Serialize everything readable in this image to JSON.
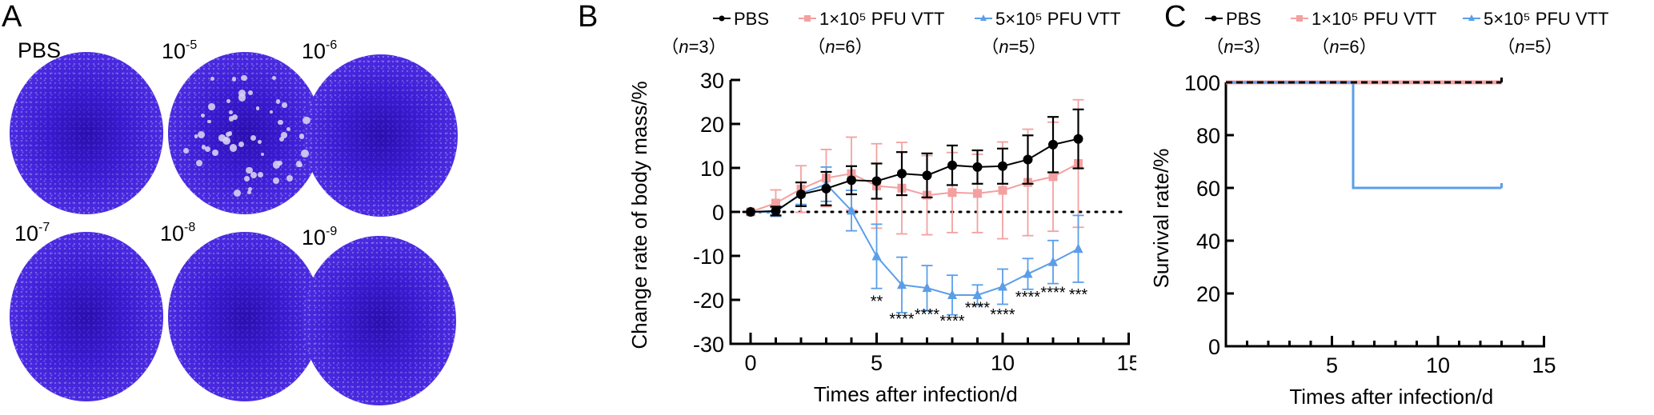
{
  "panel_a": {
    "letter": "A",
    "plates": [
      {
        "label": "PBS",
        "base": "",
        "exp": ""
      },
      {
        "label": "",
        "base": "10",
        "exp": "-5"
      },
      {
        "label": "",
        "base": "10",
        "exp": "-6"
      },
      {
        "label": "",
        "base": "10",
        "exp": "-7"
      },
      {
        "label": "",
        "base": "10",
        "exp": "-8"
      },
      {
        "label": "",
        "base": "10",
        "exp": "-9"
      }
    ]
  },
  "legend": [
    {
      "name": "PBS",
      "n": "n=3",
      "color": "#000000",
      "marker": "circle"
    },
    {
      "name": "1×10⁵ PFU VTT",
      "n": "n=6",
      "color": "#f4a0a0",
      "marker": "square"
    },
    {
      "name": "5×10⁵ PFU VTT",
      "n": "n=5",
      "color": "#5b9ee8",
      "marker": "triangle"
    }
  ],
  "chart_data": [
    {
      "panel": "B",
      "type": "line",
      "title": "",
      "xlabel": "Times after infection/d",
      "ylabel": "Change rate of body mass/%",
      "xlim": [
        -1,
        15
      ],
      "ylim": [
        -30,
        30
      ],
      "xticks": [
        0,
        5,
        10,
        15
      ],
      "yticks": [
        30,
        20,
        10,
        0,
        -10,
        -20,
        -30
      ],
      "reference_line": {
        "y": 0,
        "style": "dotted"
      },
      "x": [
        0,
        1,
        2,
        3,
        4,
        5,
        6,
        7,
        8,
        9,
        10,
        11,
        12,
        13
      ],
      "series": [
        {
          "name": "PBS (n=3)",
          "color": "#000000",
          "marker": "circle",
          "values": [
            0,
            0.2,
            4,
            5.3,
            7.2,
            7,
            8.7,
            8.3,
            10.6,
            10.2,
            10.4,
            11.9,
            15.3,
            16.6
          ],
          "errors": [
            0,
            1.0,
            2.7,
            3.8,
            3.2,
            4.0,
            4.9,
            5.0,
            4.5,
            3.8,
            4.0,
            5.5,
            6.3,
            6.7
          ]
        },
        {
          "name": "1×10⁵ PFU VTT (n=6)",
          "color": "#f4a0a0",
          "marker": "square",
          "values": [
            0,
            2,
            5.2,
            7.7,
            8.7,
            5.9,
            5.4,
            3.8,
            4.4,
            4.2,
            4.9,
            6.7,
            8,
            11
          ],
          "errors": [
            0,
            3.0,
            5.3,
            6.5,
            8.3,
            9.6,
            10.4,
            9.0,
            9.1,
            8.9,
            11.0,
            12.1,
            12.4,
            14.5
          ]
        },
        {
          "name": "5×10⁵ PFU VTT (n=5)",
          "color": "#5b9ee8",
          "marker": "triangle",
          "values": [
            0,
            0,
            4.2,
            6.3,
            0.3,
            -10.1,
            -16.6,
            -17.3,
            -18.9,
            -18.9,
            -17,
            -14.1,
            -11.4,
            -8.4
          ],
          "errors": [
            0,
            1.0,
            2.5,
            3.9,
            4.6,
            7.3,
            6.3,
            5.1,
            4.5,
            2.3,
            4.0,
            3.5,
            4.9,
            7.6
          ]
        }
      ],
      "annotations": [
        {
          "x": 5,
          "text": "**"
        },
        {
          "x": 6,
          "text": "****"
        },
        {
          "x": 7,
          "text": "****"
        },
        {
          "x": 8,
          "text": "****"
        },
        {
          "x": 9,
          "text": "****"
        },
        {
          "x": 10,
          "text": "****"
        },
        {
          "x": 11,
          "text": "****"
        },
        {
          "x": 12,
          "text": "****"
        },
        {
          "x": 13,
          "text": "***"
        }
      ]
    },
    {
      "panel": "C",
      "type": "line",
      "subtype": "survival-step",
      "title": "",
      "xlabel": "Times after infection/d",
      "ylabel": "Survival rate/%",
      "xlim": [
        0,
        15
      ],
      "ylim": [
        0,
        100
      ],
      "xticks": [
        5,
        10,
        15
      ],
      "yticks": [
        100,
        80,
        60,
        40,
        20,
        0
      ],
      "series": [
        {
          "name": "PBS (n=3)",
          "color": "#000000",
          "style": "dashed",
          "steps": [
            [
              0,
              100
            ],
            [
              13,
              100
            ]
          ]
        },
        {
          "name": "1×10⁵ PFU VTT (n=6)",
          "color": "#f4a0a0",
          "style": "solid",
          "steps": [
            [
              0,
              100
            ],
            [
              13,
              100
            ]
          ]
        },
        {
          "name": "5×10⁵ PFU VTT (n=5)",
          "color": "#5b9ee8",
          "style": "solid",
          "steps": [
            [
              0,
              100
            ],
            [
              6,
              100
            ],
            [
              6,
              60
            ],
            [
              13,
              60
            ]
          ]
        }
      ]
    }
  ],
  "panel_b": {
    "letter": "B"
  },
  "panel_c": {
    "letter": "C"
  }
}
